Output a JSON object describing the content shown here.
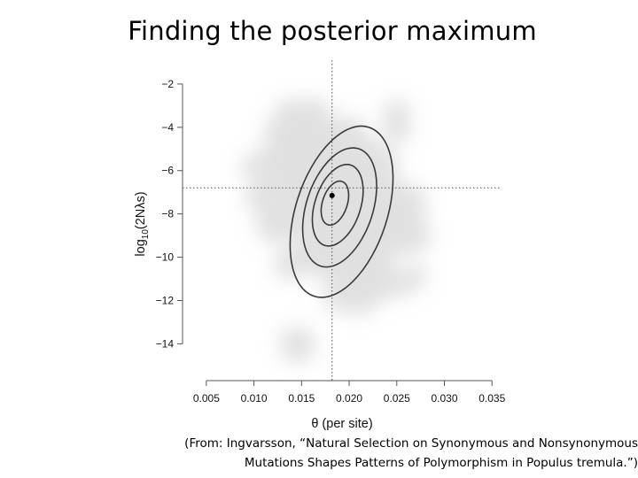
{
  "slide": {
    "title": "Finding the posterior maximum",
    "caption_line1": "(From: Ingvarsson, “Natural Selection on Synonymous and Nonsynonymous",
    "caption_line2": "Mutations Shapes Patterns of Polymorphism in Populus tremula.”)"
  },
  "chart_data": {
    "type": "contour",
    "xlabel": "θ (per site)",
    "ylabel": "log10(2Nλs)",
    "xlim": [
      0.0025,
      0.036
    ],
    "ylim": [
      -15.7,
      -0.9
    ],
    "x_ticks": [
      0.005,
      0.01,
      0.015,
      0.02,
      0.025,
      0.03,
      0.035
    ],
    "x_tick_labels": [
      "0.005",
      "0.010",
      "0.015",
      "0.020",
      "0.025",
      "0.030",
      "0.035"
    ],
    "y_ticks": [
      -2,
      -4,
      -6,
      -8,
      -10,
      -12,
      -14
    ],
    "y_tick_labels": [
      "−2",
      "−4",
      "−6",
      "−8",
      "−10",
      "−12",
      "−14"
    ],
    "maximum": {
      "x": 0.0182,
      "y": -7.15
    },
    "reference_lines": {
      "x": 0.0182,
      "y": -6.8
    },
    "contours": [
      {
        "cx": 0.0185,
        "cy": -7.5,
        "rx": 0.0013,
        "ry": 1.05,
        "tilt_deg": 18
      },
      {
        "cx": 0.0188,
        "cy": -7.6,
        "rx": 0.0024,
        "ry": 1.95,
        "tilt_deg": 18
      },
      {
        "cx": 0.019,
        "cy": -7.7,
        "rx": 0.0035,
        "ry": 2.85,
        "tilt_deg": 18
      },
      {
        "cx": 0.0192,
        "cy": -7.9,
        "rx": 0.0048,
        "ry": 4.1,
        "tilt_deg": 18
      }
    ],
    "grid": false,
    "colors": {
      "cloud": "#c8c8c8",
      "contour": "#3a3a3a",
      "axis": "#555555"
    }
  }
}
